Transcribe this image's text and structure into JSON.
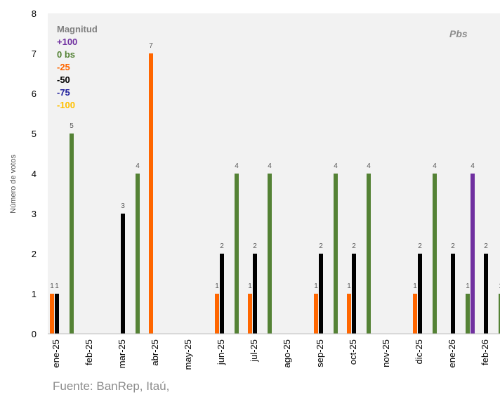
{
  "chart_data": {
    "type": "bar",
    "title": "",
    "ylabel": "Número de votos",
    "xlabel": "",
    "ylim": [
      0,
      8
    ],
    "yticks": [
      "0",
      "1",
      "2",
      "3",
      "4",
      "5",
      "6",
      "7",
      "8"
    ],
    "grid": false,
    "unit_label": "Pbs",
    "legend": {
      "title": "Magnitud",
      "placement": "top-left",
      "entries": [
        "+100",
        "0 bs",
        "-25",
        "-50",
        "-75",
        "-100"
      ]
    },
    "categories": [
      "ene-25",
      "feb-25",
      "mar-25",
      "abr-25",
      "may-25",
      "jun-25",
      "jul-25",
      "ago-25",
      "sep-25",
      "oct-25",
      "nov-25",
      "dic-25",
      "ene-26",
      "feb-26"
    ],
    "series": [
      {
        "name": "+100",
        "color": "#7030a0",
        "values": [
          null,
          null,
          null,
          null,
          null,
          null,
          null,
          null,
          null,
          null,
          null,
          null,
          4,
          null
        ]
      },
      {
        "name": "0 bs",
        "color": "#548235",
        "values": [
          5,
          null,
          4,
          null,
          null,
          4,
          4,
          null,
          4,
          4,
          null,
          4,
          1,
          1
        ]
      },
      {
        "name": "-25",
        "color": "#ff6600",
        "values": [
          1,
          null,
          null,
          7,
          null,
          1,
          1,
          null,
          1,
          1,
          null,
          1,
          null,
          null
        ]
      },
      {
        "name": "-50",
        "color": "#000000",
        "values": [
          1,
          null,
          3,
          null,
          null,
          2,
          2,
          null,
          2,
          2,
          null,
          2,
          2,
          2
        ]
      },
      {
        "name": "-75",
        "color": "#1f1f9c",
        "values": [
          null,
          null,
          null,
          null,
          null,
          null,
          null,
          null,
          null,
          null,
          null,
          null,
          null,
          null
        ]
      },
      {
        "name": "-100",
        "color": "#ffc000",
        "values": [
          null,
          null,
          null,
          null,
          null,
          null,
          null,
          null,
          null,
          null,
          null,
          null,
          null,
          null
        ]
      }
    ],
    "data_labels": [
      {
        "category": "ene-25",
        "series": "-25",
        "text": "1"
      },
      {
        "category": "ene-25",
        "series": "-50",
        "text": "1"
      },
      {
        "category": "ene-25",
        "series": "0 bs",
        "text": "5"
      },
      {
        "category": "mar-25",
        "series": "-50",
        "text": "3"
      },
      {
        "category": "mar-25",
        "series": "0 bs",
        "text": "4"
      },
      {
        "category": "abr-25",
        "series": "-25",
        "text": "7"
      },
      {
        "category": "jun-25",
        "series": "-25",
        "text": "1"
      },
      {
        "category": "jun-25",
        "series": "-50",
        "text": "2"
      },
      {
        "category": "jun-25",
        "series": "0 bs",
        "text": "4"
      },
      {
        "category": "jul-25",
        "series": "-25",
        "text": "1"
      },
      {
        "category": "jul-25",
        "series": "-50",
        "text": "2"
      },
      {
        "category": "jul-25",
        "series": "0 bs",
        "text": "4"
      },
      {
        "category": "sep-25",
        "series": "-25",
        "text": "1"
      },
      {
        "category": "sep-25",
        "series": "-50",
        "text": "2"
      },
      {
        "category": "sep-25",
        "series": "0 bs",
        "text": "4"
      },
      {
        "category": "oct-25",
        "series": "-25",
        "text": "1"
      },
      {
        "category": "oct-25",
        "series": "-50",
        "text": "2"
      },
      {
        "category": "oct-25",
        "series": "0 bs",
        "text": "4"
      },
      {
        "category": "dic-25",
        "series": "-25",
        "text": "1"
      },
      {
        "category": "dic-25",
        "series": "-50",
        "text": "2"
      },
      {
        "category": "dic-25",
        "series": "0 bs",
        "text": "4"
      },
      {
        "category": "ene-26",
        "series": "-50",
        "text": "2"
      },
      {
        "category": "ene-26",
        "series": "0 bs",
        "text": "1"
      },
      {
        "category": "ene-26",
        "series": "+100",
        "text": "4"
      },
      {
        "category": "feb-26",
        "series": "-50",
        "text": "2"
      },
      {
        "category": "feb-26",
        "series": "0 bs",
        "text": "1"
      }
    ]
  },
  "source_note": "Fuente: BanRep, Itaú,"
}
